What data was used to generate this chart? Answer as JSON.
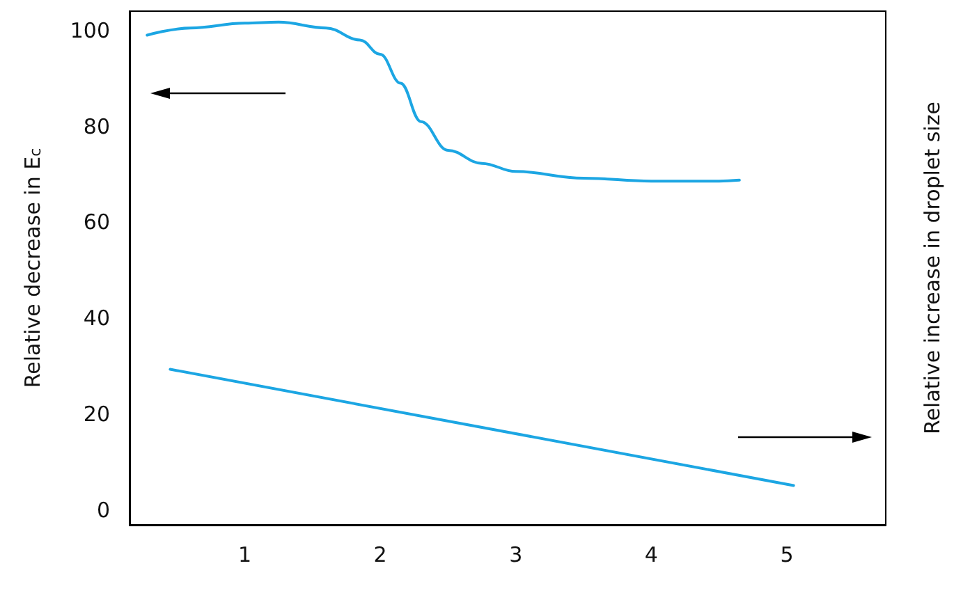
{
  "chart_data": {
    "type": "line",
    "ylabel": "Relative decrease in E$_{c}$",
    "y2label": "Relative increase in droplet size",
    "xlim": [
      0.15,
      5.73
    ],
    "xticks": [
      1,
      2,
      3,
      4,
      5
    ],
    "ylim": [
      -3,
      104
    ],
    "yticks": [
      0,
      20,
      40,
      60,
      80,
      100
    ],
    "grid": false,
    "marker": "none",
    "line_style": "solid",
    "series": [
      {
        "color": "#1ca6e3",
        "x": [
          0.28,
          0.6,
          1.0,
          1.25,
          1.6,
          1.85,
          2.0,
          2.15,
          2.3,
          2.5,
          2.75,
          3.0,
          3.5,
          4.0,
          4.5,
          4.65
        ],
        "values": [
          99,
          100.5,
          101.5,
          101.7,
          100.5,
          98,
          95,
          89,
          81,
          75,
          72.3,
          70.6,
          69.2,
          68.6,
          68.6,
          68.8
        ]
      },
      {
        "color": "#1ca6e3",
        "x": [
          0.45,
          5.05
        ],
        "values": [
          29.4,
          5.2
        ]
      }
    ]
  }
}
